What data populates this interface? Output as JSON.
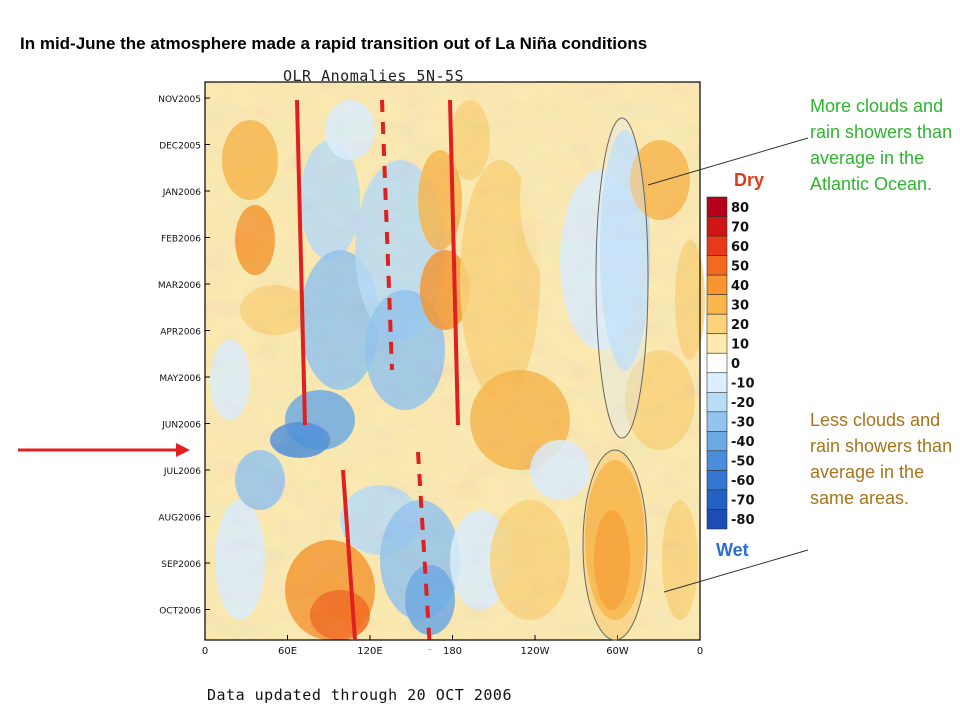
{
  "headline": "In mid-June the atmosphere made a rapid transition out of La Niña conditions",
  "chart_data": {
    "type": "heatmap",
    "title": "OLR Anomalies 5N-5S",
    "footer": "Data updated through 20 OCT 2006",
    "y_ticks": [
      "NOV2005",
      "DEC2005",
      "JAN2006",
      "FEB2006",
      "MAR2006",
      "APR2006",
      "MAY2006",
      "JUN2006",
      "JUL2006",
      "AUG2006",
      "SEP2006",
      "OCT2006"
    ],
    "x_ticks": [
      "0",
      "60E",
      "120E",
      "180",
      "120W",
      "60W",
      "0"
    ],
    "x_values": [
      0,
      60,
      120,
      180,
      240,
      300,
      360
    ],
    "x_range": [
      0,
      360
    ],
    "colorbar": {
      "levels": [
        "80",
        "70",
        "60",
        "50",
        "40",
        "30",
        "20",
        "10",
        "0",
        "-10",
        "-20",
        "-30",
        "-40",
        "-50",
        "-60",
        "-70",
        "-80"
      ],
      "colors": [
        "#b5001a",
        "#d01515",
        "#e83a1a",
        "#f36a1f",
        "#f7962e",
        "#f9b64a",
        "#fbd37a",
        "#fdeab0",
        "#ffffff",
        "#dcefff",
        "#b9dcf7",
        "#92c4ee",
        "#6ba9e4",
        "#4a8edb",
        "#3376d1",
        "#2560c3",
        "#1b4db5"
      ],
      "top_label": "Dry",
      "bottom_label": "Wet"
    },
    "annotations": [
      {
        "text": "More clouds and rain showers than average in the Atlantic Ocean.",
        "color": "#2db52d"
      },
      {
        "text": "Less clouds and rain showers than average in the same areas.",
        "color": "#a8741a"
      }
    ],
    "grid": false
  }
}
